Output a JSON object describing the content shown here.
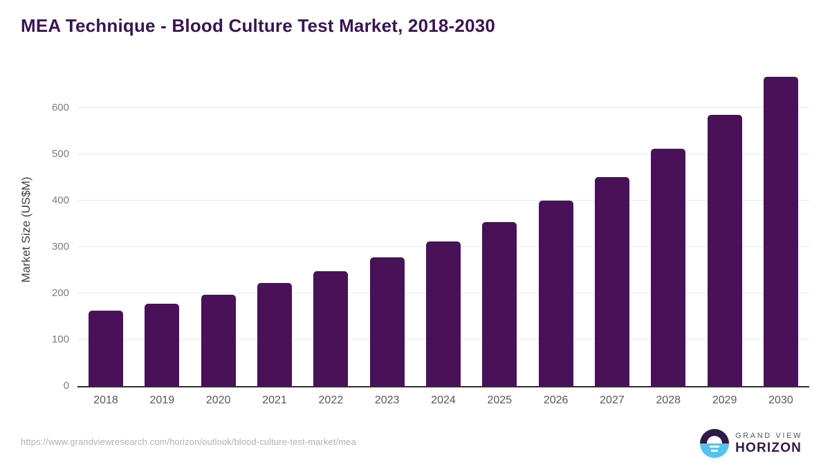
{
  "chart_data": {
    "type": "bar",
    "title": "MEA Technique - Blood Culture Test Market, 2018-2030",
    "xlabel": "",
    "ylabel": "Market Size (US$M)",
    "categories": [
      "2018",
      "2019",
      "2020",
      "2021",
      "2022",
      "2023",
      "2024",
      "2025",
      "2026",
      "2027",
      "2028",
      "2029",
      "2030"
    ],
    "values": [
      163,
      178,
      197,
      222,
      248,
      277,
      312,
      353,
      400,
      451,
      512,
      584,
      666
    ],
    "yticks": [
      0,
      100,
      200,
      300,
      400,
      500,
      600
    ],
    "ylim": [
      0,
      686
    ],
    "grid": "horizontal",
    "legend_position": "none",
    "bar_color": "#491158"
  },
  "colors": {
    "title": "#3a1551",
    "bar": "#491158",
    "gridline": "#e9e9e9",
    "axis_line": "#2e2e2e",
    "y_tick_label": "#7d7d80",
    "x_tick_label": "#56575a",
    "url_text": "#b0b0b2",
    "logo_navy": "#2e1a47",
    "logo_blue": "#55c3f0",
    "logo_gray": "#54565c"
  },
  "footer": {
    "source_url": "https://www.grandviewresearch.com/horizon/outlook/blood-culture-test-market/mea",
    "logo": {
      "line1": "GRAND VIEW",
      "line2": "HORIZON",
      "icon": "sun-over-horizon-icon"
    }
  }
}
